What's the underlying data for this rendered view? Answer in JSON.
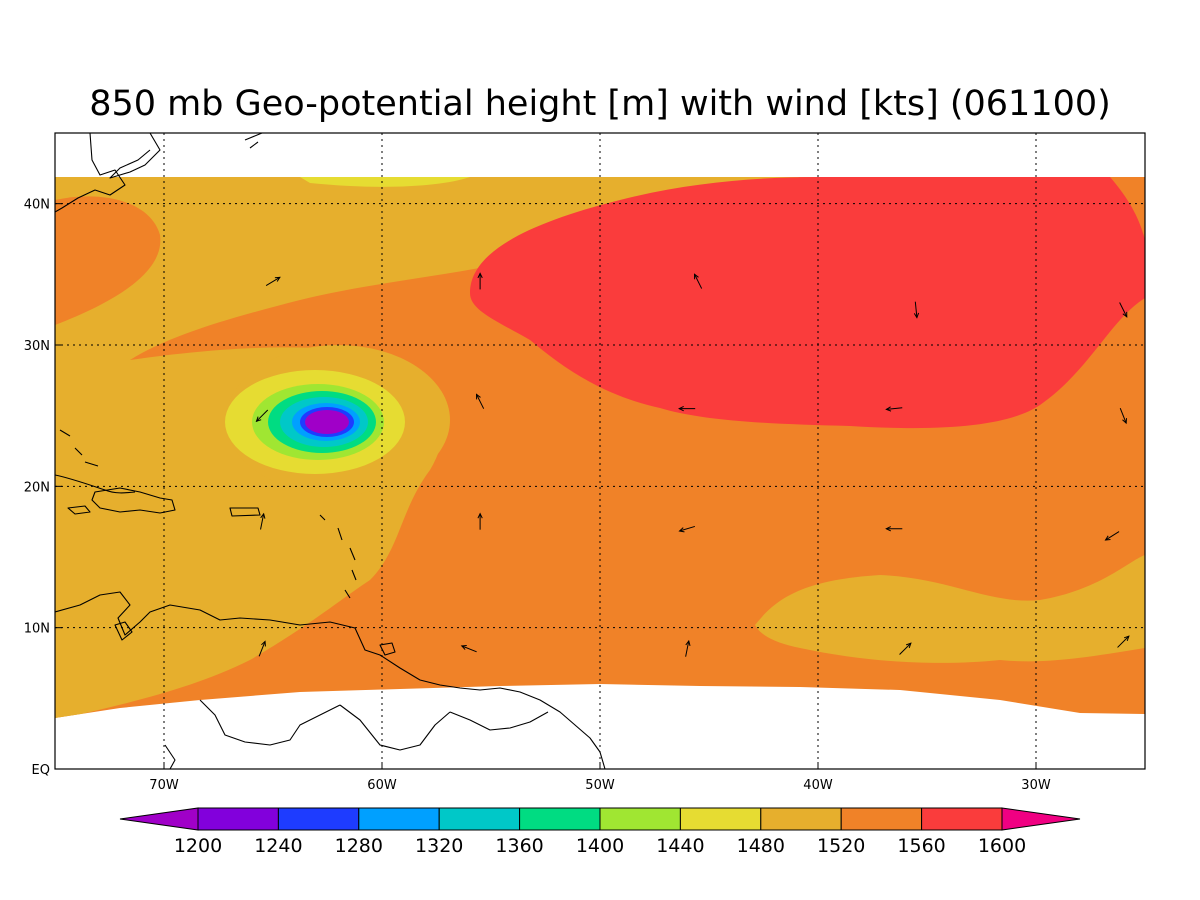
{
  "title": "850 mb Geo-potential height [m] with wind [kts] (061100)",
  "chart_data": {
    "type": "heatmap",
    "title": "850 mb Geo-potential height [m] with wind [kts] (061100)",
    "variable": "850 mb geopotential height",
    "units": "m",
    "overlay": "wind vectors [kts]",
    "lon_range": [
      -75,
      -25
    ],
    "lat_range": [
      0,
      45
    ],
    "data_lat_range": [
      5,
      42
    ],
    "grid": true,
    "lon_ticks": [
      {
        "value": -70,
        "label": "70W"
      },
      {
        "value": -60,
        "label": "60W"
      },
      {
        "value": -50,
        "label": "50W"
      },
      {
        "value": -40,
        "label": "40W"
      },
      {
        "value": -30,
        "label": "30W"
      }
    ],
    "lat_ticks": [
      {
        "value": 0,
        "label": "EQ"
      },
      {
        "value": 10,
        "label": "10N"
      },
      {
        "value": 20,
        "label": "20N"
      },
      {
        "value": 30,
        "label": "30N"
      },
      {
        "value": 40,
        "label": "40N"
      }
    ],
    "colorbar": {
      "placement": "bottom",
      "levels": [
        1200,
        1240,
        1280,
        1320,
        1360,
        1400,
        1440,
        1480,
        1520,
        1560,
        1600
      ],
      "labels": [
        "1200",
        "1240",
        "1280",
        "1320",
        "1360",
        "1400",
        "1440",
        "1480",
        "1520",
        "1560",
        "1600"
      ],
      "colors": [
        "#a000c8",
        "#8200dc",
        "#1e3cff",
        "#00a0ff",
        "#00c8c8",
        "#00dc82",
        "#a0e632",
        "#e6dc32",
        "#e6af2d",
        "#f08228",
        "#fa3c3c",
        "#f00082"
      ]
    },
    "features": [
      {
        "name": "low-center",
        "lon": -62.5,
        "lat": 24.5,
        "min_value": 1200
      }
    ],
    "wind_vectors": [
      {
        "lon": -65,
        "lat": 34.5,
        "u": 1,
        "v": 0.6
      },
      {
        "lon": -55.5,
        "lat": 34.5,
        "u": 0,
        "v": 1
      },
      {
        "lon": -45.5,
        "lat": 34.5,
        "u": -0.5,
        "v": 1
      },
      {
        "lon": -35.5,
        "lat": 32.5,
        "u": 0.1,
        "v": -1
      },
      {
        "lon": -26,
        "lat": 32.5,
        "u": 0.5,
        "v": -1
      },
      {
        "lon": -65.5,
        "lat": 25,
        "u": -0.8,
        "v": -0.8
      },
      {
        "lon": -55.5,
        "lat": 26,
        "u": -0.5,
        "v": 1
      },
      {
        "lon": -46,
        "lat": 25.5,
        "u": -1,
        "v": 0
      },
      {
        "lon": -36.5,
        "lat": 25.5,
        "u": -1,
        "v": -0.1
      },
      {
        "lon": -26,
        "lat": 25,
        "u": 0.4,
        "v": -1
      },
      {
        "lon": -65.5,
        "lat": 17.5,
        "u": 0.2,
        "v": 1
      },
      {
        "lon": -55.5,
        "lat": 17.5,
        "u": 0,
        "v": 1
      },
      {
        "lon": -46,
        "lat": 17,
        "u": -1,
        "v": -0.3
      },
      {
        "lon": -36.5,
        "lat": 17,
        "u": -1,
        "v": 0
      },
      {
        "lon": -26.5,
        "lat": 16.5,
        "u": -0.8,
        "v": -0.5
      },
      {
        "lon": -65.5,
        "lat": 8.5,
        "u": 0.4,
        "v": 1
      },
      {
        "lon": -56,
        "lat": 8.5,
        "u": -1,
        "v": 0.4
      },
      {
        "lon": -46,
        "lat": 8.5,
        "u": 0.2,
        "v": 1
      },
      {
        "lon": -36,
        "lat": 8.5,
        "u": 0.7,
        "v": 0.7
      },
      {
        "lon": -26,
        "lat": 9,
        "u": 0.7,
        "v": 0.7
      }
    ]
  }
}
